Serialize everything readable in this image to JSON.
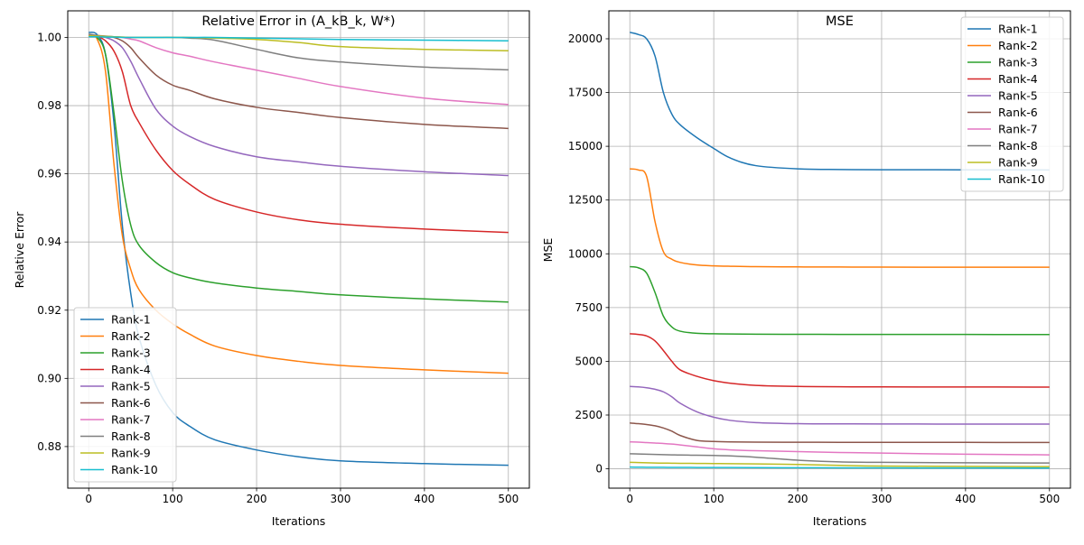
{
  "chart_data": [
    {
      "type": "line",
      "title": "Relative Error in (A_kB_k, W*)",
      "xlabel": "Iterations",
      "ylabel": "Relative Error",
      "xlim": [
        -25,
        525
      ],
      "ylim": [
        0.8678,
        1.0078
      ],
      "xticks": [
        0,
        100,
        200,
        300,
        400,
        500
      ],
      "xtick_labels": [
        "0",
        "100",
        "200",
        "300",
        "400",
        "500"
      ],
      "yticks": [
        0.88,
        0.9,
        0.92,
        0.94,
        0.96,
        0.98,
        1.0
      ],
      "ytick_labels": [
        "0.88",
        "0.90",
        "0.92",
        "0.94",
        "0.96",
        "0.98",
        "1.00"
      ],
      "grid": true,
      "legend_position": "lower-left",
      "x": [
        0,
        10,
        20,
        30,
        40,
        50,
        60,
        80,
        100,
        120,
        150,
        200,
        250,
        300,
        400,
        500
      ],
      "series": [
        {
          "name": "Rank-1",
          "color": "#1f77b4",
          "values": [
            1.0015,
            1.0008,
            0.995,
            0.975,
            0.945,
            0.925,
            0.912,
            0.898,
            0.89,
            0.886,
            0.882,
            0.879,
            0.877,
            0.8758,
            0.875,
            0.8745
          ]
        },
        {
          "name": "Rank-2",
          "color": "#ff7f0e",
          "values": [
            1.0005,
            0.9995,
            0.99,
            0.963,
            0.942,
            0.932,
            0.926,
            0.92,
            0.916,
            0.913,
            0.9095,
            0.9067,
            0.905,
            0.9038,
            0.9025,
            0.9015
          ]
        },
        {
          "name": "Rank-3",
          "color": "#2ca02c",
          "values": [
            1.0005,
            1.0,
            0.995,
            0.978,
            0.958,
            0.945,
            0.939,
            0.934,
            0.931,
            0.9295,
            0.928,
            0.9265,
            0.9255,
            0.9245,
            0.9233,
            0.9224
          ]
        },
        {
          "name": "Rank-4",
          "color": "#d62728",
          "values": [
            1.0005,
            1.0003,
            0.999,
            0.996,
            0.99,
            0.98,
            0.975,
            0.967,
            0.961,
            0.957,
            0.9525,
            0.9488,
            0.9465,
            0.9452,
            0.9438,
            0.9428
          ]
        },
        {
          "name": "Rank-5",
          "color": "#9467bd",
          "values": [
            1.0005,
            1.0004,
            1.0,
            0.999,
            0.997,
            0.993,
            0.988,
            0.979,
            0.974,
            0.971,
            0.968,
            0.965,
            0.9635,
            0.9622,
            0.9606,
            0.9595
          ]
        },
        {
          "name": "Rank-6",
          "color": "#8c564b",
          "values": [
            1.0005,
            1.0004,
            1.0003,
            1.0,
            0.999,
            0.997,
            0.994,
            0.989,
            0.986,
            0.9845,
            0.982,
            0.9795,
            0.978,
            0.9765,
            0.9745,
            0.9733
          ]
        },
        {
          "name": "Rank-7",
          "color": "#e377c2",
          "values": [
            1.0005,
            1.0004,
            1.0003,
            1.0002,
            1.0,
            0.9995,
            0.999,
            0.997,
            0.9955,
            0.9945,
            0.9928,
            0.9904,
            0.988,
            0.9856,
            0.9822,
            0.9803
          ]
        },
        {
          "name": "Rank-8",
          "color": "#7f7f7f",
          "values": [
            1.001,
            1.0006,
            1.0004,
            1.0002,
            1.0001,
            1.0,
            1.0,
            1.0,
            1.0,
            0.9998,
            0.9992,
            0.9965,
            0.994,
            0.9928,
            0.9913,
            0.9905
          ]
        },
        {
          "name": "Rank-9",
          "color": "#bcbd22",
          "values": [
            1.0005,
            1.0004,
            1.0003,
            1.0002,
            1.0001,
            1.0,
            1.0,
            1.0,
            1.0,
            1.0,
            0.9998,
            0.9994,
            0.9985,
            0.9973,
            0.9965,
            0.9961
          ]
        },
        {
          "name": "Rank-10",
          "color": "#17becf",
          "values": [
            1.0002,
            1.0002,
            1.0001,
            1.0001,
            1.0,
            1.0,
            1.0,
            1.0,
            1.0,
            1.0,
            1.0,
            0.9998,
            0.9996,
            0.9994,
            0.9992,
            0.999
          ]
        }
      ]
    },
    {
      "type": "line",
      "title": "MSE",
      "xlabel": "Iterations",
      "ylabel": "MSE",
      "xlim": [
        -25,
        525
      ],
      "ylim": [
        -900,
        21300
      ],
      "xticks": [
        0,
        100,
        200,
        300,
        400,
        500
      ],
      "xtick_labels": [
        "0",
        "100",
        "200",
        "300",
        "400",
        "500"
      ],
      "yticks": [
        0,
        2500,
        5000,
        7500,
        10000,
        12500,
        15000,
        17500,
        20000
      ],
      "ytick_labels": [
        "0",
        "2500",
        "5000",
        "7500",
        "10000",
        "12500",
        "15000",
        "17500",
        "20000"
      ],
      "grid": true,
      "legend_position": "upper-right",
      "x": [
        0,
        10,
        20,
        30,
        40,
        50,
        60,
        80,
        100,
        120,
        150,
        200,
        250,
        300,
        400,
        500
      ],
      "series": [
        {
          "name": "Rank-1",
          "color": "#1f77b4",
          "values": [
            20300,
            20200,
            20000,
            19200,
            17500,
            16500,
            16000,
            15400,
            14900,
            14450,
            14100,
            13950,
            13920,
            13910,
            13905,
            13900
          ]
        },
        {
          "name": "Rank-2",
          "color": "#ff7f0e",
          "values": [
            13950,
            13900,
            13600,
            11500,
            10100,
            9750,
            9600,
            9480,
            9440,
            9420,
            9400,
            9390,
            9385,
            9380,
            9378,
            9375
          ]
        },
        {
          "name": "Rank-3",
          "color": "#2ca02c",
          "values": [
            9400,
            9350,
            9100,
            8200,
            7100,
            6600,
            6400,
            6300,
            6280,
            6270,
            6260,
            6255,
            6252,
            6250,
            6248,
            6246
          ]
        },
        {
          "name": "Rank-4",
          "color": "#d62728",
          "values": [
            6280,
            6250,
            6180,
            5950,
            5500,
            5000,
            4600,
            4300,
            4100,
            3980,
            3880,
            3830,
            3815,
            3810,
            3805,
            3800
          ]
        },
        {
          "name": "Rank-5",
          "color": "#9467bd",
          "values": [
            3830,
            3810,
            3770,
            3700,
            3580,
            3350,
            3050,
            2650,
            2400,
            2250,
            2150,
            2100,
            2090,
            2085,
            2080,
            2078
          ]
        },
        {
          "name": "Rank-6",
          "color": "#8c564b",
          "values": [
            2130,
            2100,
            2060,
            2000,
            1900,
            1750,
            1550,
            1320,
            1270,
            1250,
            1240,
            1235,
            1232,
            1230,
            1228,
            1225
          ]
        },
        {
          "name": "Rank-7",
          "color": "#e377c2",
          "values": [
            1250,
            1240,
            1220,
            1200,
            1180,
            1150,
            1110,
            1020,
            930,
            880,
            840,
            800,
            760,
            730,
            680,
            650
          ]
        },
        {
          "name": "Rank-8",
          "color": "#7f7f7f",
          "values": [
            700,
            690,
            680,
            670,
            660,
            650,
            640,
            630,
            620,
            600,
            540,
            400,
            320,
            300,
            280,
            270
          ]
        },
        {
          "name": "Rank-9",
          "color": "#bcbd22",
          "values": [
            300,
            290,
            280,
            270,
            265,
            260,
            255,
            250,
            245,
            240,
            230,
            200,
            160,
            130,
            110,
            100
          ]
        },
        {
          "name": "Rank-10",
          "color": "#17becf",
          "values": [
            80,
            75,
            72,
            70,
            68,
            66,
            65,
            62,
            60,
            58,
            55,
            50,
            45,
            42,
            38,
            35
          ]
        }
      ]
    }
  ]
}
